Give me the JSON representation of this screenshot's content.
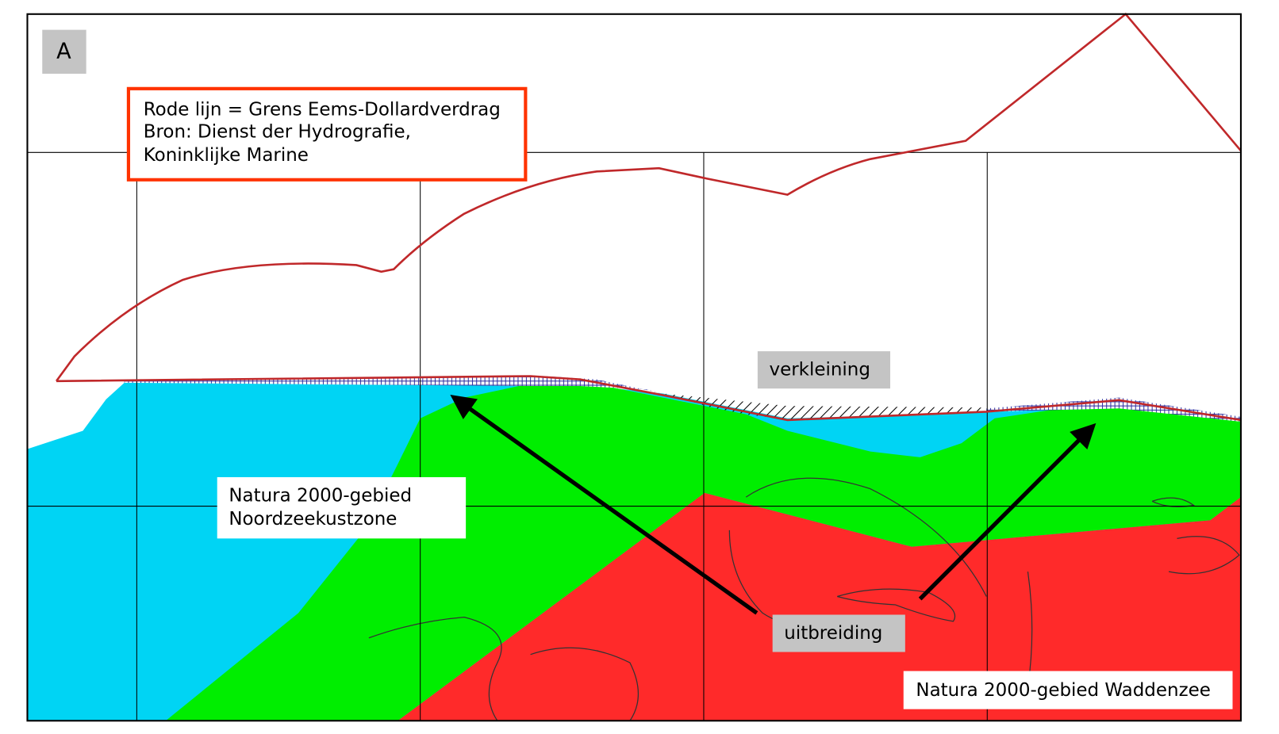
{
  "panel": {
    "label": "A"
  },
  "legend": {
    "lines": [
      "Rode lijn = Grens Eems-Dollardverdrag",
      "Bron: Dienst der Hydrografie,",
      "Koninklijke Marine"
    ]
  },
  "labels": {
    "reduction": "verkleining",
    "extension": "uitbreiding",
    "north_sea_zone": [
      "Natura 2000-gebied",
      "Noordzeekustzone"
    ],
    "wadden_sea": "Natura 2000-gebied Waddenzee"
  }
}
